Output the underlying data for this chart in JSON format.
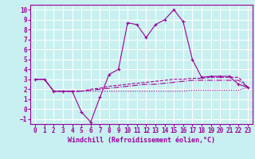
{
  "xlabel": "Windchill (Refroidissement éolien,°C)",
  "background_color": "#c8f0f0",
  "grid_color": "#ffffff",
  "line_color": "#990099",
  "xlim": [
    -0.5,
    23.5
  ],
  "ylim": [
    -1.5,
    10.5
  ],
  "xticks": [
    0,
    1,
    2,
    3,
    4,
    5,
    6,
    7,
    8,
    9,
    10,
    11,
    12,
    13,
    14,
    15,
    16,
    17,
    18,
    19,
    20,
    21,
    22,
    23
  ],
  "yticks": [
    -1,
    0,
    1,
    2,
    3,
    4,
    5,
    6,
    7,
    8,
    9,
    10
  ],
  "series1_x": [
    0,
    1,
    2,
    3,
    4,
    5,
    6,
    7,
    8,
    9,
    10,
    11,
    12,
    13,
    14,
    15,
    16,
    17,
    18,
    19,
    20,
    21,
    22,
    23
  ],
  "series1_y": [
    3.0,
    3.0,
    1.8,
    1.8,
    1.8,
    -0.3,
    -1.3,
    1.2,
    3.5,
    4.0,
    8.7,
    8.5,
    7.2,
    8.5,
    9.0,
    10.0,
    8.8,
    5.0,
    3.2,
    3.3,
    3.3,
    3.3,
    2.5,
    2.2
  ],
  "series2_x": [
    0,
    1,
    2,
    3,
    4,
    5,
    6,
    7,
    8,
    9,
    10,
    11,
    12,
    13,
    14,
    15,
    16,
    17,
    18,
    19,
    20,
    21,
    22,
    23
  ],
  "series2_y": [
    3.0,
    3.0,
    1.8,
    1.8,
    1.8,
    1.8,
    2.0,
    2.1,
    2.3,
    2.4,
    2.5,
    2.6,
    2.7,
    2.8,
    2.9,
    3.0,
    3.0,
    3.1,
    3.1,
    3.2,
    3.2,
    3.2,
    3.2,
    2.2
  ],
  "series3_x": [
    0,
    1,
    2,
    3,
    4,
    5,
    6,
    7,
    8,
    9,
    10,
    11,
    12,
    13,
    14,
    15,
    16,
    17,
    18,
    19,
    20,
    21,
    22,
    23
  ],
  "series3_y": [
    3.0,
    3.0,
    1.8,
    1.8,
    1.8,
    1.8,
    1.9,
    2.0,
    2.1,
    2.2,
    2.3,
    2.4,
    2.5,
    2.5,
    2.6,
    2.7,
    2.8,
    2.9,
    2.9,
    2.9,
    2.9,
    2.9,
    2.9,
    2.2
  ],
  "series4_x": [
    0,
    1,
    2,
    3,
    4,
    5,
    6,
    7,
    8,
    9,
    10,
    11,
    12,
    13,
    14,
    15,
    16,
    17,
    18,
    19,
    20,
    21,
    22,
    23
  ],
  "series4_y": [
    3.0,
    3.0,
    1.8,
    1.8,
    1.8,
    1.8,
    1.8,
    1.8,
    1.8,
    1.8,
    1.8,
    1.8,
    1.8,
    1.8,
    1.8,
    1.8,
    1.8,
    1.9,
    1.9,
    1.9,
    1.9,
    1.9,
    1.9,
    2.2
  ],
  "tick_fontsize": 5.5,
  "xlabel_fontsize": 6.0
}
